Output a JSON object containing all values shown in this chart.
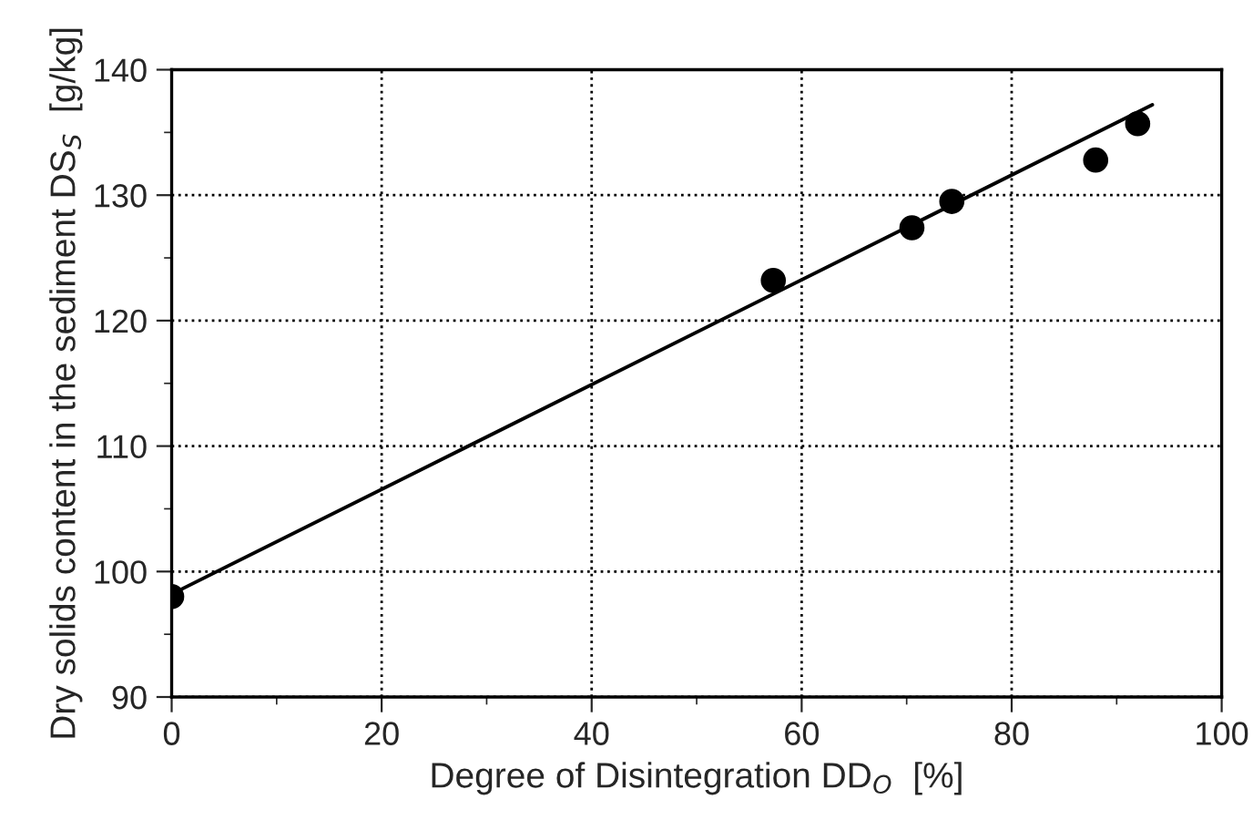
{
  "chart_data": {
    "type": "scatter",
    "xlabel": "Degree of Disintegration DD$_{O}$  [%]",
    "ylabel": "Dry solids content in the sediment DS$_{S}$  [g/kg]",
    "series": [
      {
        "color": "#000000",
        "marker": "circle",
        "x": [
          0,
          57.3,
          70.5,
          74.3,
          88.0,
          92.0
        ],
        "values": [
          98.0,
          123.2,
          127.4,
          129.5,
          132.8,
          135.7
        ]
      },
      {
        "type": "line",
        "color": "#000000",
        "marker": "none",
        "line_style": "solid",
        "x": [
          0,
          93.4
        ],
        "values": [
          98.2,
          137.2
        ]
      }
    ],
    "xlim": [
      0,
      100
    ],
    "xticks": [
      0,
      20,
      40,
      60,
      80,
      100
    ],
    "ylim": [
      90,
      140
    ],
    "yticks": [
      90,
      100,
      110,
      120,
      130,
      140
    ],
    "grid": true
  }
}
